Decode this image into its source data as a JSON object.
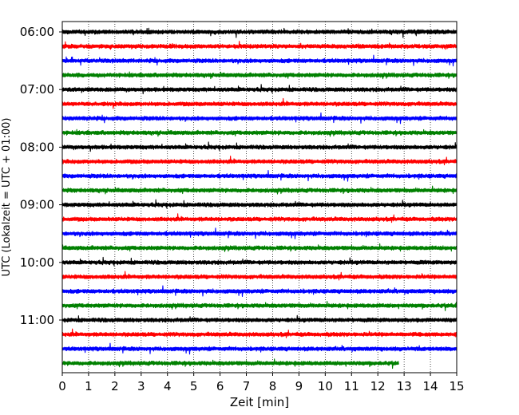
{
  "chart_data": {
    "type": "line",
    "xlabel": "Zeit  [min]",
    "ylabel": "UTC (Lokalzeit = UTC + 01:00)",
    "xlim": [
      0,
      15
    ],
    "x_ticks": [
      0,
      1,
      2,
      3,
      4,
      5,
      6,
      7,
      8,
      9,
      10,
      11,
      12,
      13,
      14,
      15
    ],
    "x_grid": "dotted",
    "y_ticks": [
      "06:00",
      "07:00",
      "08:00",
      "09:00",
      "10:00",
      "11:00"
    ],
    "trace_interval_minutes": 15,
    "start_time": "06:00",
    "color_cycle": [
      "#000000",
      "#ff0000",
      "#0000ff",
      "#008000"
    ],
    "series": [
      {
        "time": "06:00",
        "color": "#000000",
        "x_end": 15
      },
      {
        "time": "06:15",
        "color": "#ff0000",
        "x_end": 15
      },
      {
        "time": "06:30",
        "color": "#0000ff",
        "x_end": 15
      },
      {
        "time": "06:45",
        "color": "#008000",
        "x_end": 15
      },
      {
        "time": "07:00",
        "color": "#000000",
        "x_end": 15
      },
      {
        "time": "07:15",
        "color": "#ff0000",
        "x_end": 15
      },
      {
        "time": "07:30",
        "color": "#0000ff",
        "x_end": 15
      },
      {
        "time": "07:45",
        "color": "#008000",
        "x_end": 15
      },
      {
        "time": "08:00",
        "color": "#000000",
        "x_end": 15
      },
      {
        "time": "08:15",
        "color": "#ff0000",
        "x_end": 15
      },
      {
        "time": "08:30",
        "color": "#0000ff",
        "x_end": 15
      },
      {
        "time": "08:45",
        "color": "#008000",
        "x_end": 15
      },
      {
        "time": "09:00",
        "color": "#000000",
        "x_end": 15
      },
      {
        "time": "09:15",
        "color": "#ff0000",
        "x_end": 15
      },
      {
        "time": "09:30",
        "color": "#0000ff",
        "x_end": 15
      },
      {
        "time": "09:45",
        "color": "#008000",
        "x_end": 15
      },
      {
        "time": "10:00",
        "color": "#000000",
        "x_end": 15
      },
      {
        "time": "10:15",
        "color": "#ff0000",
        "x_end": 15
      },
      {
        "time": "10:30",
        "color": "#0000ff",
        "x_end": 15
      },
      {
        "time": "10:45",
        "color": "#008000",
        "x_end": 15
      },
      {
        "time": "11:00",
        "color": "#000000",
        "x_end": 15
      },
      {
        "time": "11:15",
        "color": "#ff0000",
        "x_end": 15
      },
      {
        "time": "11:30",
        "color": "#0000ff",
        "x_end": 15
      },
      {
        "time": "11:45",
        "color": "#008000",
        "x_end": 12.8
      }
    ]
  }
}
